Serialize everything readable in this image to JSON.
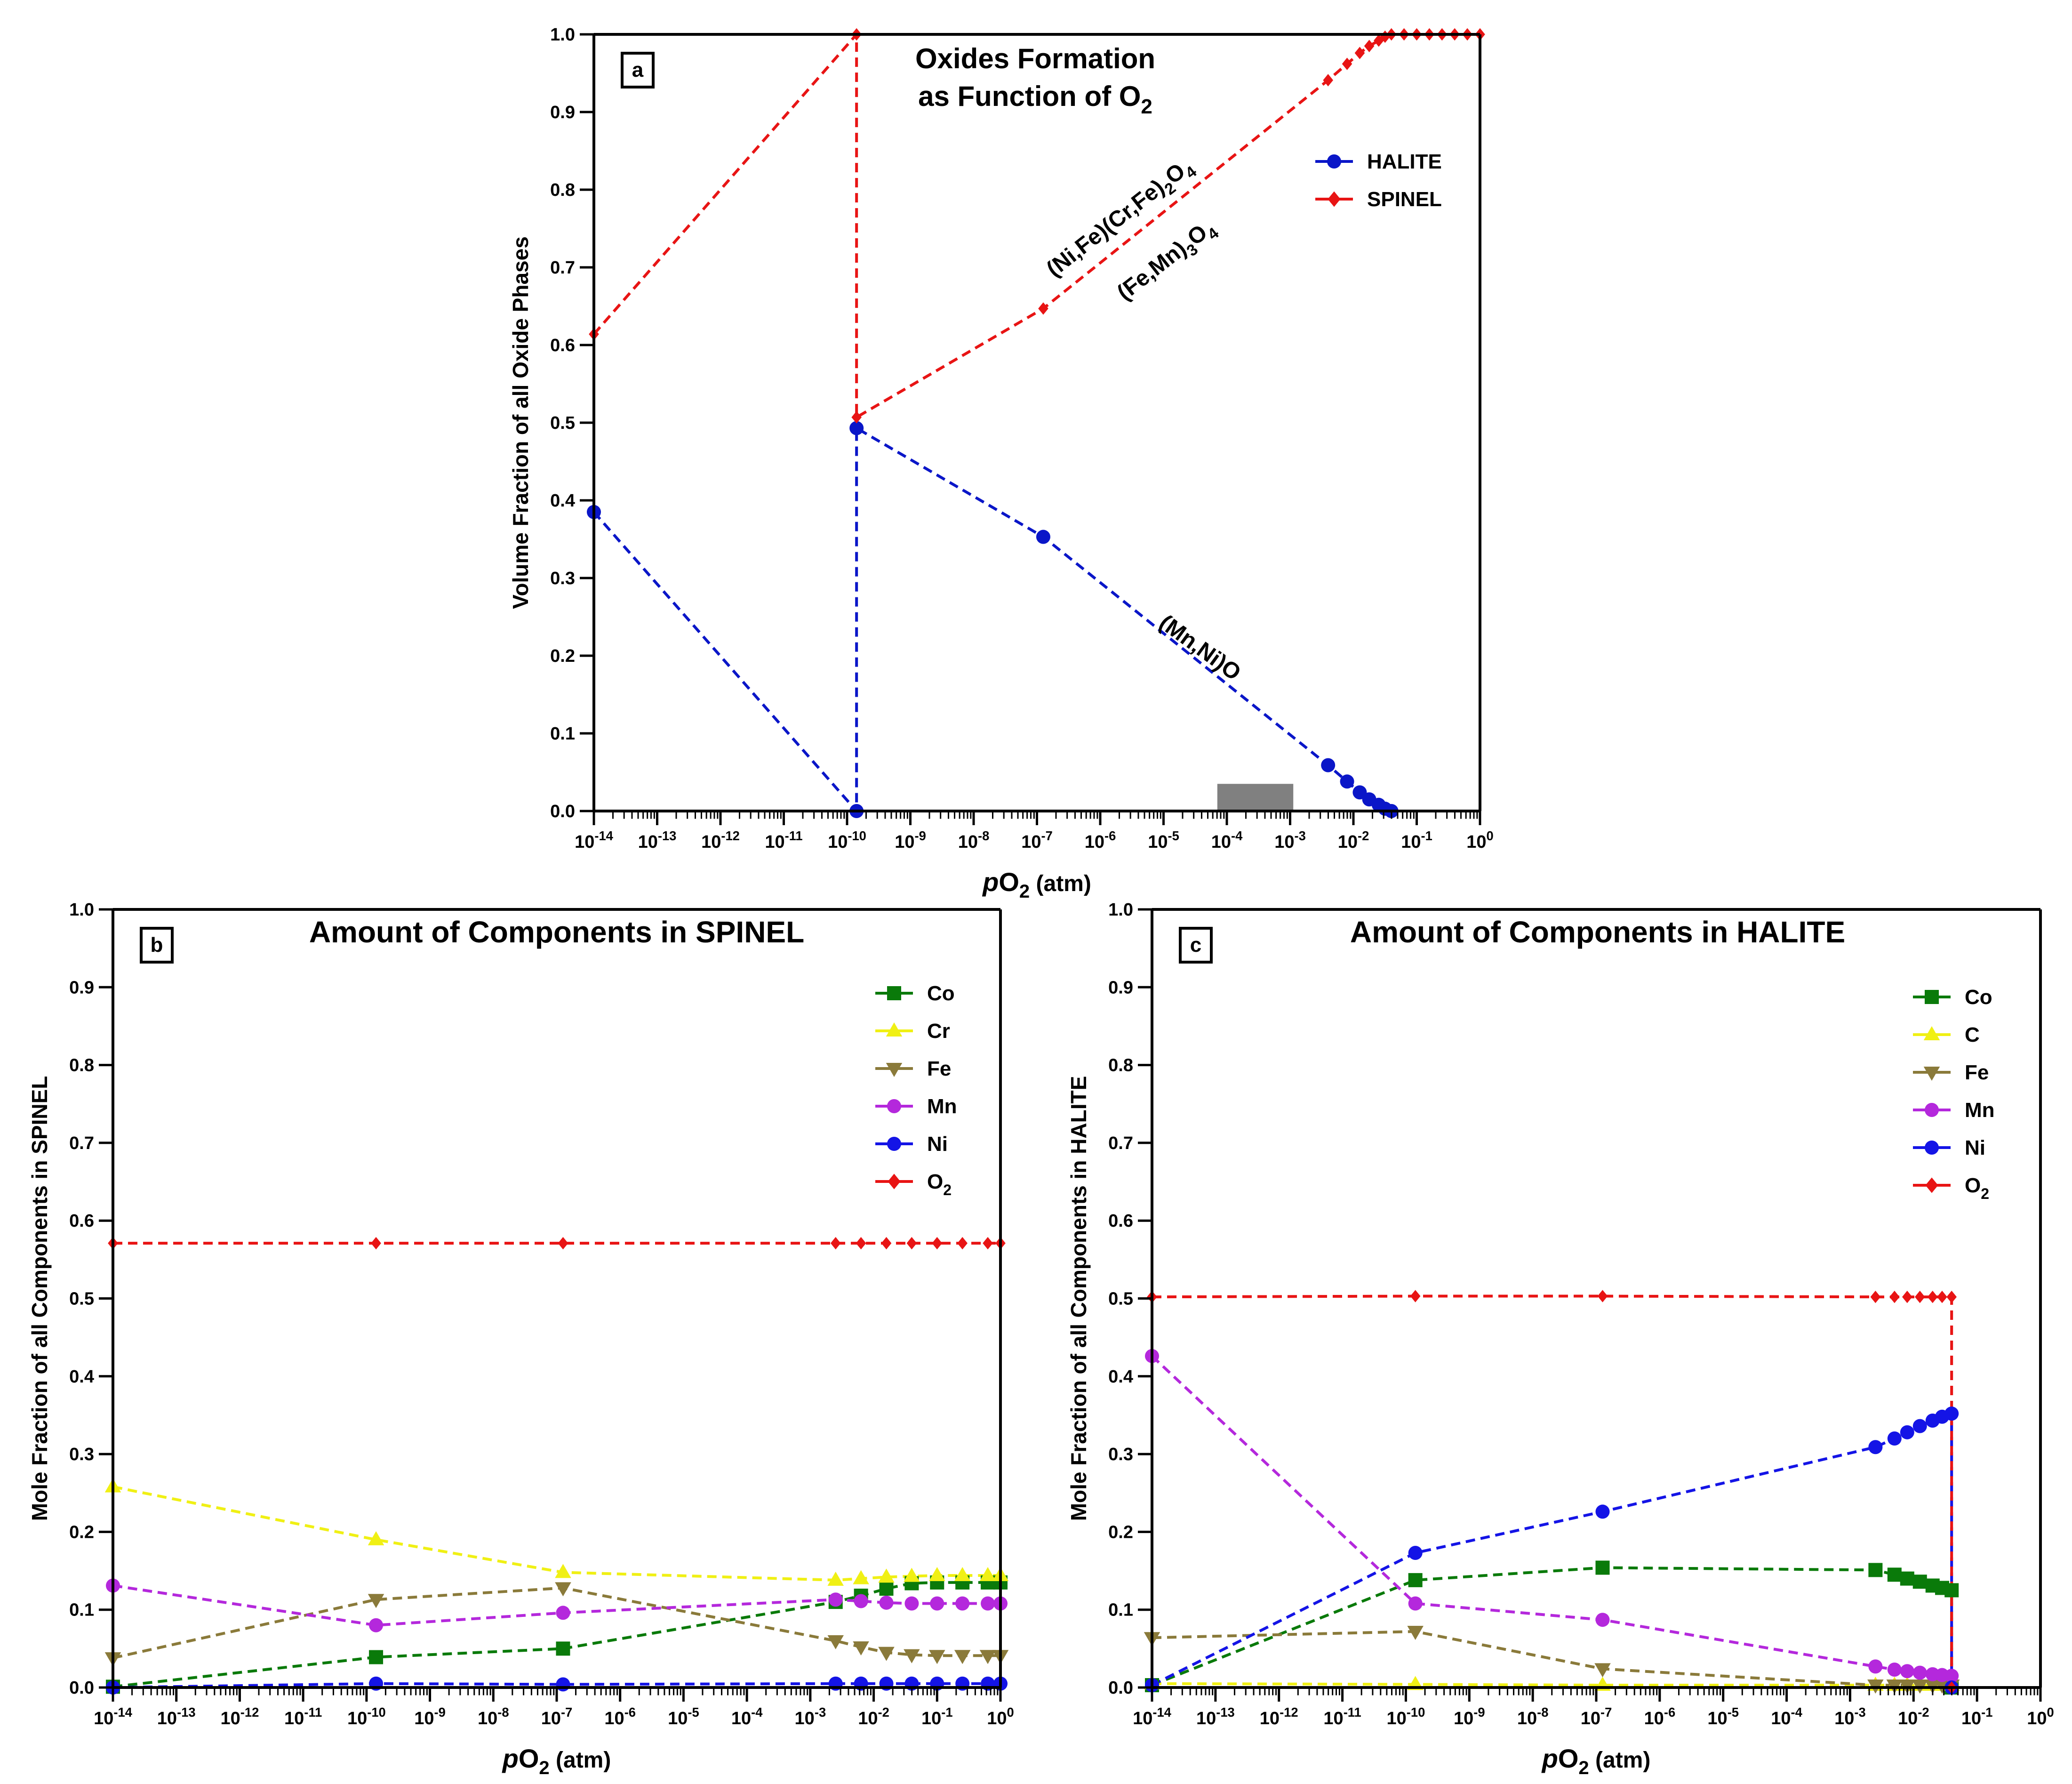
{
  "chart_data": [
    {
      "id": "a",
      "type": "line",
      "panel_label": "a",
      "title_line1": "Oxides Formation",
      "title_line2_prefix": "as Function of O",
      "title_line2_sub": "2",
      "xlabel_italic": "p",
      "xlabel_main": "O",
      "xlabel_sub": "2",
      "xlabel_unit": " (atm)",
      "ylabel": "Volume Fraction of all Oxide Phases",
      "xscale": "log10",
      "xlim_exp": [
        -14,
        0
      ],
      "ylim": [
        0,
        1
      ],
      "y_ticks": [
        "0.0",
        "0.1",
        "0.2",
        "0.3",
        "0.4",
        "0.5",
        "0.6",
        "0.7",
        "0.8",
        "0.9",
        "1.0"
      ],
      "x_tick_exponents": [
        "-14",
        "-13",
        "-12",
        "-11",
        "-10",
        "-9",
        "-8",
        "-7",
        "-6",
        "-5",
        "-4",
        "-3",
        "-2",
        "-1",
        "0"
      ],
      "x_tick_base": "10",
      "legend_position": "top-right",
      "highlight_band": {
        "x_exp": [
          -4.15,
          -2.95
        ],
        "y": [
          0,
          0.035
        ],
        "color": "#808080"
      },
      "series": [
        {
          "name": "HALITE",
          "color": "#0a16c8",
          "marker": "circle",
          "x_exp": [
            -14,
            -9.85,
            -9.85,
            -6.9,
            -2.4,
            -2.1,
            -1.9,
            -1.75,
            -1.6,
            -1.5,
            -1.4
          ],
          "values": [
            0.385,
            0.0,
            0.493,
            0.353,
            0.059,
            0.038,
            0.024,
            0.015,
            0.008,
            0.003,
            0.0
          ]
        },
        {
          "name": "SPINEL",
          "color": "#e81414",
          "marker": "diamond",
          "x_exp": [
            -14,
            -9.85,
            -9.85,
            -6.9,
            -2.4,
            -2.1,
            -1.9,
            -1.75,
            -1.6,
            -1.5,
            -1.4,
            -1.2,
            -1.0,
            -0.8,
            -0.6,
            -0.4,
            -0.2,
            0
          ],
          "values": [
            0.614,
            1.0,
            0.507,
            0.647,
            0.941,
            0.962,
            0.976,
            0.985,
            0.992,
            0.997,
            1.0,
            1.0,
            1.0,
            1.0,
            1.0,
            1.0,
            1.0,
            1.0
          ]
        }
      ],
      "annotations": [
        {
          "parts": [
            "(Ni,Fe)(Cr,Fe)",
            "2",
            "O",
            "4"
          ]
        },
        {
          "parts": [
            "(Fe,Mn)",
            "3",
            "O",
            "4"
          ]
        },
        {
          "parts": [
            "(Mn,Ni)O"
          ]
        }
      ]
    },
    {
      "id": "b",
      "type": "line",
      "panel_label": "b",
      "title": "Amount of Components in SPINEL",
      "xlabel_italic": "p",
      "xlabel_main": "O",
      "xlabel_sub": "2",
      "xlabel_unit": " (atm)",
      "ylabel": "Mole Fraction of all Components in SPINEL",
      "xscale": "log10",
      "xlim_exp": [
        -14,
        0
      ],
      "ylim": [
        0,
        1
      ],
      "y_ticks": [
        "0.0",
        "0.1",
        "0.2",
        "0.3",
        "0.4",
        "0.5",
        "0.6",
        "0.7",
        "0.8",
        "0.9",
        "1.0"
      ],
      "x_tick_exponents": [
        "-14",
        "-13",
        "-12",
        "-11",
        "-10",
        "-9",
        "-8",
        "-7",
        "-6",
        "-5",
        "-4",
        "-3",
        "-2",
        "-1",
        "0"
      ],
      "x_tick_base": "10",
      "legend_position": "top-right",
      "series": [
        {
          "name": "Co",
          "color": "#0a7a0a",
          "marker": "square",
          "x_exp": [
            -14,
            -9.85,
            -6.9,
            -2.6,
            -2.2,
            -1.8,
            -1.4,
            -1.0,
            -0.6,
            -0.2,
            0
          ],
          "values": [
            0.001,
            0.039,
            0.05,
            0.11,
            0.118,
            0.127,
            0.134,
            0.135,
            0.135,
            0.135,
            0.135
          ]
        },
        {
          "name": "Cr",
          "color": "#f0f014",
          "marker": "triangle-up",
          "x_exp": [
            -14,
            -9.85,
            -6.9,
            -2.6,
            -2.2,
            -1.8,
            -1.4,
            -1.0,
            -0.6,
            -0.2,
            0
          ],
          "values": [
            0.258,
            0.19,
            0.148,
            0.138,
            0.14,
            0.142,
            0.143,
            0.144,
            0.144,
            0.144,
            0.144
          ]
        },
        {
          "name": "Fe",
          "color": "#8a7a3a",
          "marker": "triangle-down",
          "x_exp": [
            -14,
            -9.85,
            -6.9,
            -2.6,
            -2.2,
            -1.8,
            -1.4,
            -1.0,
            -0.6,
            -0.2,
            0
          ],
          "values": [
            0.038,
            0.113,
            0.128,
            0.06,
            0.052,
            0.045,
            0.042,
            0.041,
            0.041,
            0.041,
            0.041
          ]
        },
        {
          "name": "Mn",
          "color": "#b428dc",
          "marker": "circle",
          "x_exp": [
            -14,
            -9.85,
            -6.9,
            -2.6,
            -2.2,
            -1.8,
            -1.4,
            -1.0,
            -0.6,
            -0.2,
            0
          ],
          "values": [
            0.131,
            0.08,
            0.096,
            0.113,
            0.111,
            0.109,
            0.108,
            0.108,
            0.108,
            0.108,
            0.108
          ]
        },
        {
          "name": "Ni",
          "color": "#1414e6",
          "marker": "circle",
          "x_exp": [
            -14,
            -9.85,
            -6.9,
            -2.6,
            -2.2,
            -1.8,
            -1.4,
            -1.0,
            -0.6,
            -0.2,
            0
          ],
          "values": [
            0.0,
            0.005,
            0.004,
            0.005,
            0.005,
            0.005,
            0.005,
            0.005,
            0.005,
            0.005,
            0.005
          ]
        },
        {
          "name": "O2",
          "label_main": "O",
          "label_sub": "2",
          "color": "#e81414",
          "marker": "diamond",
          "x_exp": [
            -14,
            -9.85,
            -6.9,
            -2.6,
            -2.2,
            -1.8,
            -1.4,
            -1.0,
            -0.6,
            -0.2,
            0
          ],
          "values": [
            0.571,
            0.571,
            0.571,
            0.571,
            0.571,
            0.571,
            0.571,
            0.571,
            0.571,
            0.571,
            0.571
          ]
        }
      ]
    },
    {
      "id": "c",
      "type": "line",
      "panel_label": "c",
      "title": "Amount of Components in HALITE",
      "xlabel_italic": "p",
      "xlabel_main": "O",
      "xlabel_sub": "2",
      "xlabel_unit": " (atm)",
      "ylabel": "Mole Fraction of all Components in HALITE",
      "xscale": "log10",
      "xlim_exp": [
        -14,
        0
      ],
      "ylim": [
        0,
        1
      ],
      "y_ticks": [
        "0.0",
        "0.1",
        "0.2",
        "0.3",
        "0.4",
        "0.5",
        "0.6",
        "0.7",
        "0.8",
        "0.9",
        "1.0"
      ],
      "x_tick_exponents": [
        "-14",
        "-13",
        "-12",
        "-11",
        "-10",
        "-9",
        "-8",
        "-7",
        "-6",
        "-5",
        "-4",
        "-3",
        "-2",
        "-1",
        "0"
      ],
      "x_tick_base": "10",
      "legend_position": "top-right",
      "series": [
        {
          "name": "Co",
          "color": "#0a7a0a",
          "marker": "square",
          "x_exp": [
            -14,
            -9.85,
            -6.9,
            -2.6,
            -2.3,
            -2.1,
            -1.9,
            -1.7,
            -1.55,
            -1.4,
            -1.4
          ],
          "values": [
            0.003,
            0.138,
            0.154,
            0.151,
            0.145,
            0.14,
            0.136,
            0.131,
            0.128,
            0.125,
            0.0
          ]
        },
        {
          "name": "C",
          "color": "#f0f014",
          "marker": "triangle-up",
          "x_exp": [
            -14,
            -9.85,
            -6.9,
            -2.6,
            -2.3,
            -2.1,
            -1.9,
            -1.7,
            -1.55,
            -1.4
          ],
          "values": [
            0.005,
            0.004,
            0.003,
            0.003,
            0.003,
            0.003,
            0.003,
            0.003,
            0.003,
            0.003
          ]
        },
        {
          "name": "Fe",
          "color": "#8a7a3a",
          "marker": "triangle-down",
          "x_exp": [
            -14,
            -9.85,
            -6.9,
            -2.6,
            -2.3,
            -2.1,
            -1.9,
            -1.7,
            -1.55,
            -1.4
          ],
          "values": [
            0.064,
            0.072,
            0.024,
            0.003,
            0.003,
            0.003,
            0.003,
            0.003,
            0.003,
            0.003
          ]
        },
        {
          "name": "Mn",
          "color": "#b428dc",
          "marker": "circle",
          "x_exp": [
            -14,
            -9.85,
            -6.9,
            -2.6,
            -2.3,
            -2.1,
            -1.9,
            -1.7,
            -1.55,
            -1.4
          ],
          "values": [
            0.426,
            0.108,
            0.087,
            0.027,
            0.023,
            0.021,
            0.019,
            0.017,
            0.016,
            0.015
          ]
        },
        {
          "name": "Ni",
          "color": "#1414e6",
          "marker": "circle",
          "x_exp": [
            -14,
            -9.85,
            -6.9,
            -2.6,
            -2.3,
            -2.1,
            -1.9,
            -1.7,
            -1.55,
            -1.4,
            -1.4
          ],
          "values": [
            0.003,
            0.173,
            0.226,
            0.309,
            0.32,
            0.328,
            0.336,
            0.343,
            0.348,
            0.352,
            0.0
          ]
        },
        {
          "name": "O2",
          "label_main": "O",
          "label_sub": "2",
          "color": "#e81414",
          "marker": "diamond",
          "x_exp": [
            -14,
            -9.85,
            -6.9,
            -2.6,
            -2.3,
            -2.1,
            -1.9,
            -1.7,
            -1.55,
            -1.4,
            -1.4
          ],
          "values": [
            0.502,
            0.503,
            0.503,
            0.502,
            0.502,
            0.502,
            0.502,
            0.502,
            0.502,
            0.502,
            0.0
          ]
        }
      ]
    }
  ]
}
